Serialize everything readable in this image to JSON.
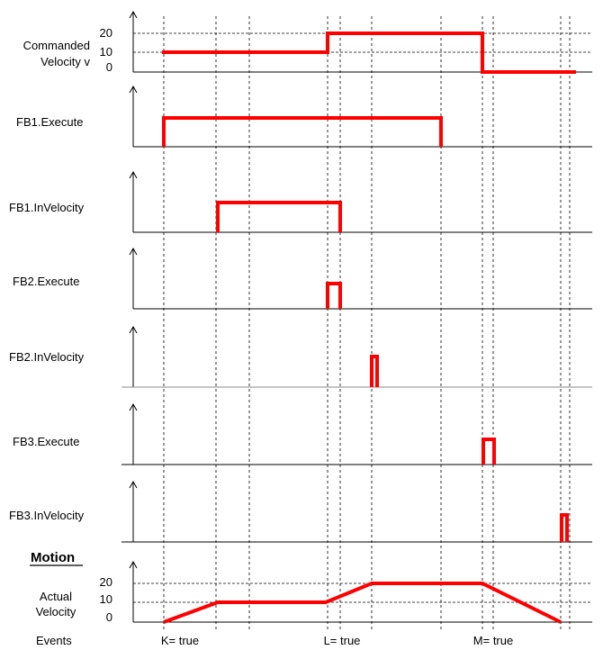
{
  "panels": {
    "commanded": {
      "label_line1": "Commanded",
      "label_line2": "Velocity v",
      "ticks": [
        "20",
        "10",
        "0"
      ]
    },
    "fb1_execute": {
      "label": "FB1.Execute"
    },
    "fb1_invelocity": {
      "label": "FB1.InVelocity"
    },
    "fb2_execute": {
      "label": "FB2.Execute"
    },
    "fb2_invelocity": {
      "label": "FB2.InVelocity"
    },
    "fb3_execute": {
      "label": "FB3.Execute"
    },
    "fb3_invelocity": {
      "label": "FB3.InVelocity"
    },
    "actual": {
      "label_line1": "Actual",
      "label_line2": "Velocity",
      "ticks": [
        "20",
        "10",
        "0"
      ]
    }
  },
  "section_title": "Motion",
  "events": {
    "label": "Events",
    "k": "K= true",
    "l": "L= true",
    "m": "M= true"
  },
  "colors": {
    "signal": "#ff0000",
    "axis": "#000000"
  }
}
